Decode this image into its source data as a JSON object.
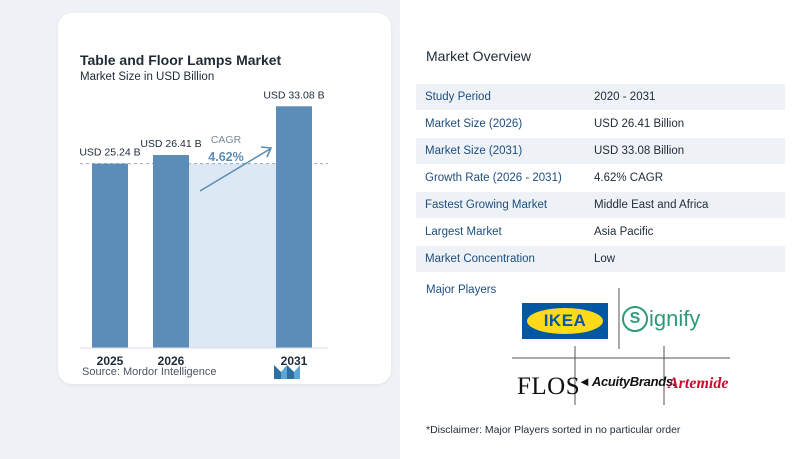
{
  "chart_data": {
    "type": "bar",
    "title": "Table and Floor Lamps Market",
    "subtitle": "Market Size in USD Billion",
    "categories": [
      "2025",
      "2026",
      "2031"
    ],
    "values": [
      25.24,
      26.41,
      33.08
    ],
    "value_labels": [
      "USD 25.24 B",
      "USD 26.41 B",
      "USD 33.08 B"
    ],
    "cagr_label": "CAGR",
    "cagr_value": "4.62%",
    "ylim": [
      0,
      35
    ],
    "grid": false,
    "bar_color": "#5b8db8",
    "shade_color": "#dce8f3"
  },
  "source": "Source:  Mordor Intelligence",
  "logo": {
    "name": "mordor-intelligence-logo"
  },
  "overview": {
    "title": "Market Overview",
    "rows": [
      {
        "label": "Study Period",
        "value": "2020 - 2031"
      },
      {
        "label": "Market Size (2026)",
        "value": "USD 26.41 Billion"
      },
      {
        "label": "Market Size (2031)",
        "value": "USD 33.08 Billion"
      },
      {
        "label": "Growth Rate (2026 - 2031)",
        "value": "4.62% CAGR"
      },
      {
        "label": "Fastest Growing Market",
        "value": "Middle East and Africa"
      },
      {
        "label": "Largest Market",
        "value": "Asia Pacific"
      },
      {
        "label": "Market Concentration",
        "value": "Low"
      }
    ],
    "players_label": "Major Players",
    "players": {
      "ikea": "IKEA",
      "signify_mark": "S",
      "signify": "ignify",
      "flos": "FLOS",
      "acuity_mark": "◄",
      "acuity": "AcuityBrands.",
      "artemide": "Artemide"
    },
    "disclaimer": "*Disclaimer: Major Players sorted in no particular order"
  }
}
